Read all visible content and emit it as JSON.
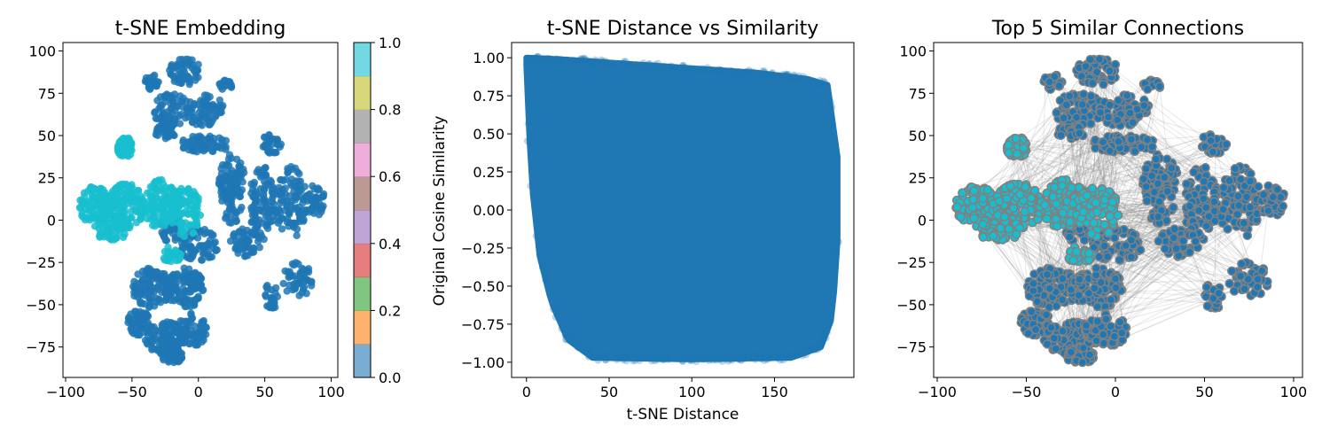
{
  "colors": {
    "cluster_a": "#1f77b4",
    "cluster_b": "#17becf",
    "edge": "#808080",
    "colorbar": [
      "#1f77b4",
      "#ff7f0e",
      "#2ca02c",
      "#d62728",
      "#9467bd",
      "#8c564b",
      "#e377c2",
      "#7f7f7f",
      "#bcbd22",
      "#17becf"
    ]
  },
  "chart_data": [
    {
      "type": "scatter",
      "title": "t-SNE Embedding",
      "xlabel": "",
      "ylabel": "",
      "xlim": [
        -102,
        105
      ],
      "ylim": [
        -93,
        105
      ],
      "xticks": [
        -100,
        -50,
        0,
        50,
        100
      ],
      "yticks": [
        -75,
        -50,
        -25,
        0,
        25,
        50,
        75,
        100
      ],
      "grid": false,
      "colorbar": {
        "range": [
          0,
          1
        ],
        "ticks": [
          0.0,
          0.2,
          0.4,
          0.6,
          0.8,
          1.0
        ],
        "tick_labels": [
          "0.0",
          "0.2",
          "0.4",
          "0.6",
          "0.8",
          "1.0"
        ],
        "colormap": "tab10"
      },
      "clusters": [
        {
          "label_value": 1.0,
          "color": "#17becf",
          "region": "left",
          "x_range": [
            -92,
            10
          ],
          "y_range": [
            -22,
            48
          ]
        },
        {
          "label_value": 0.0,
          "color": "#1f77b4",
          "region": "top",
          "x_range": [
            -35,
            35
          ],
          "y_range": [
            25,
            97
          ]
        },
        {
          "label_value": 0.0,
          "color": "#1f77b4",
          "region": "right",
          "x_range": [
            10,
            97
          ],
          "y_range": [
            -55,
            45
          ]
        },
        {
          "label_value": 0.0,
          "color": "#1f77b4",
          "region": "bottom",
          "x_range": [
            -55,
            20
          ],
          "y_range": [
            -86,
            0
          ]
        }
      ]
    },
    {
      "type": "scatter",
      "title": "t-SNE Distance vs Similarity",
      "xlabel": "t-SNE Distance",
      "ylabel": "Original Cosine Similarity",
      "xlim": [
        -9,
        198
      ],
      "ylim": [
        -1.1,
        1.1
      ],
      "xticks": [
        0,
        50,
        100,
        150
      ],
      "yticks": [
        -1.0,
        -0.75,
        -0.5,
        -0.25,
        0.0,
        0.25,
        0.5,
        0.75,
        1.0
      ],
      "ytick_labels": [
        "−1.00",
        "−0.75",
        "−0.50",
        "−0.25",
        "0.00",
        "0.25",
        "0.50",
        "0.75",
        "1.00"
      ],
      "grid": false,
      "point_cloud": {
        "x_range": [
          0,
          188
        ],
        "y_range": [
          -0.98,
          1.0
        ],
        "color": "#1f77b4",
        "upper_envelope": [
          [
            0,
            1.0
          ],
          [
            20,
            0.99
          ],
          [
            60,
            0.96
          ],
          [
            100,
            0.93
          ],
          [
            140,
            0.9
          ],
          [
            170,
            0.86
          ],
          [
            182,
            0.82
          ],
          [
            188,
            0.35
          ]
        ],
        "lower_envelope": [
          [
            0,
            0.95
          ],
          [
            3,
            0.2
          ],
          [
            8,
            -0.3
          ],
          [
            15,
            -0.6
          ],
          [
            25,
            -0.85
          ],
          [
            40,
            -0.97
          ],
          [
            100,
            -0.98
          ],
          [
            160,
            -0.97
          ],
          [
            178,
            -0.9
          ],
          [
            185,
            -0.7
          ],
          [
            188,
            -0.2
          ]
        ]
      }
    },
    {
      "type": "scatter",
      "title": "Top 5 Similar Connections",
      "xlabel": "",
      "ylabel": "",
      "xlim": [
        -102,
        105
      ],
      "ylim": [
        -93,
        105
      ],
      "xticks": [
        -100,
        -50,
        0,
        50,
        100
      ],
      "yticks": [
        -75,
        -50,
        -25,
        0,
        25,
        50,
        75,
        100
      ],
      "grid": false,
      "connections_per_point": 5
    }
  ]
}
